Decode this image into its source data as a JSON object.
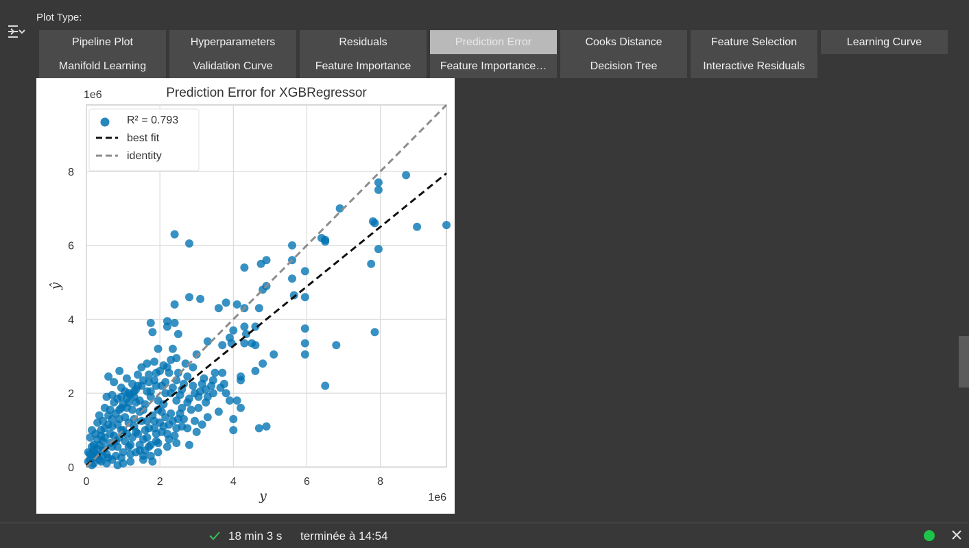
{
  "plot_type_label": "Plot Type:",
  "buttons": [
    {
      "label": "Pipeline Plot",
      "active": false
    },
    {
      "label": "Hyperparameters",
      "active": false
    },
    {
      "label": "Residuals",
      "active": false
    },
    {
      "label": "Prediction Error",
      "active": true
    },
    {
      "label": "Cooks Distance",
      "active": false
    },
    {
      "label": "Feature Selection",
      "active": false
    },
    {
      "label": "Learning Curve",
      "active": false
    },
    {
      "label": "Manifold Learning",
      "active": false
    },
    {
      "label": "Validation Curve",
      "active": false
    },
    {
      "label": "Feature Importance",
      "active": false
    },
    {
      "label": "Feature Importance…",
      "active": false
    },
    {
      "label": "Decision Tree",
      "active": false
    },
    {
      "label": "Interactive Residuals",
      "active": false
    }
  ],
  "chart_data": {
    "type": "scatter",
    "title": "Prediction Error for XGBRegressor",
    "xlabel": "y",
    "ylabel": "ŷ",
    "x_offset_text": "1e6",
    "y_offset_text": "1e6",
    "xlim": [
      0,
      9.8
    ],
    "ylim": [
      0,
      9.8
    ],
    "xticks": [
      "0",
      "2",
      "4",
      "6",
      "8"
    ],
    "yticks": [
      "0",
      "2",
      "4",
      "6",
      "8"
    ],
    "grid": true,
    "legend": {
      "position": "top-left",
      "entries": [
        {
          "label": "R² = 0.793",
          "marker": "circle",
          "color": "#0072b2"
        },
        {
          "label": "best fit",
          "marker": "dashed-line",
          "color": "#111111"
        },
        {
          "label": "identity",
          "marker": "dashed-line",
          "color": "#8c8c8c"
        }
      ]
    },
    "r2": 0.793,
    "series": [
      {
        "name": "R² = 0.793",
        "kind": "scatter",
        "color": "#0072b2",
        "points": [
          [
            8.7,
            7.9
          ],
          [
            7.95,
            7.7
          ],
          [
            7.95,
            7.5
          ],
          [
            7.8,
            6.65
          ],
          [
            7.85,
            6.6
          ],
          [
            9.0,
            6.5
          ],
          [
            9.8,
            6.55
          ],
          [
            7.95,
            5.9
          ],
          [
            7.75,
            5.5
          ],
          [
            7.85,
            3.65
          ],
          [
            6.9,
            7.0
          ],
          [
            6.4,
            6.2
          ],
          [
            6.5,
            6.1
          ],
          [
            6.5,
            6.15
          ],
          [
            5.6,
            6.0
          ],
          [
            5.95,
            5.3
          ],
          [
            5.6,
            5.6
          ],
          [
            5.6,
            5.1
          ],
          [
            5.95,
            4.6
          ],
          [
            5.65,
            4.65
          ],
          [
            5.95,
            3.75
          ],
          [
            5.95,
            3.35
          ],
          [
            5.95,
            3.05
          ],
          [
            6.8,
            3.3
          ],
          [
            6.5,
            2.2
          ],
          [
            5.1,
            3.05
          ],
          [
            4.8,
            2.8
          ],
          [
            4.6,
            2.6
          ],
          [
            4.9,
            1.1
          ],
          [
            4.7,
            1.05
          ],
          [
            2.4,
            6.3
          ],
          [
            2.8,
            6.05
          ],
          [
            4.3,
            5.4
          ],
          [
            4.75,
            5.5
          ],
          [
            4.9,
            5.6
          ],
          [
            4.9,
            4.9
          ],
          [
            4.8,
            4.8
          ],
          [
            4.3,
            4.3
          ],
          [
            4.7,
            4.3
          ],
          [
            4.1,
            4.4
          ],
          [
            3.8,
            4.45
          ],
          [
            3.6,
            4.3
          ],
          [
            4.6,
            3.8
          ],
          [
            4.35,
            3.6
          ],
          [
            4.0,
            3.7
          ],
          [
            4.5,
            3.35
          ],
          [
            4.3,
            3.35
          ],
          [
            4.6,
            3.3
          ],
          [
            4.3,
            3.8
          ],
          [
            3.9,
            3.5
          ],
          [
            2.4,
            4.4
          ],
          [
            2.8,
            4.6
          ],
          [
            3.1,
            4.55
          ],
          [
            2.2,
            3.95
          ],
          [
            2.2,
            3.8
          ],
          [
            2.4,
            3.9
          ],
          [
            2.35,
            3.2
          ],
          [
            1.95,
            3.2
          ],
          [
            1.75,
            3.9
          ],
          [
            1.8,
            3.65
          ],
          [
            2.5,
            3.6
          ],
          [
            3.3,
            3.4
          ],
          [
            3.0,
            3.05
          ],
          [
            2.7,
            2.8
          ],
          [
            2.45,
            2.95
          ],
          [
            3.7,
            3.3
          ],
          [
            3.95,
            3.35
          ],
          [
            3.75,
            2.25
          ],
          [
            4.2,
            2.35
          ],
          [
            4.2,
            2.45
          ],
          [
            4.1,
            1.8
          ],
          [
            3.9,
            1.8
          ],
          [
            4.2,
            1.6
          ],
          [
            4.0,
            1.3
          ],
          [
            3.6,
            1.5
          ],
          [
            4.0,
            1.0
          ],
          [
            3.3,
            1.35
          ],
          [
            2.6,
            1.1
          ],
          [
            3.0,
            0.95
          ],
          [
            2.4,
            0.85
          ],
          [
            2.2,
            0.55
          ],
          [
            1.8,
            0.15
          ],
          [
            1.55,
            0.3
          ],
          [
            2.8,
            0.6
          ],
          [
            3.3,
            1.9
          ],
          [
            3.4,
            2.2
          ],
          [
            3.8,
            2.0
          ],
          [
            3.2,
            2.4
          ],
          [
            3.5,
            2.55
          ],
          [
            3.7,
            2.55
          ],
          [
            2.9,
            2.2
          ],
          [
            3.1,
            2.05
          ],
          [
            2.8,
            1.85
          ],
          [
            2.6,
            1.6
          ],
          [
            2.5,
            1.3
          ],
          [
            2.3,
            1.45
          ],
          [
            2.1,
            1.7
          ],
          [
            2.0,
            1.2
          ],
          [
            1.8,
            1.4
          ],
          [
            1.6,
            1.0
          ],
          [
            1.4,
            0.9
          ],
          [
            1.2,
            0.6
          ],
          [
            1.0,
            0.4
          ],
          [
            0.8,
            0.3
          ],
          [
            0.6,
            0.25
          ],
          [
            0.4,
            0.15
          ],
          [
            0.2,
            0.1
          ],
          [
            0.1,
            0.2
          ],
          [
            0.3,
            0.5
          ],
          [
            0.5,
            0.8
          ],
          [
            0.7,
            1.1
          ],
          [
            0.9,
            1.3
          ],
          [
            1.1,
            1.6
          ],
          [
            1.3,
            1.9
          ],
          [
            1.5,
            2.2
          ],
          [
            1.7,
            2.5
          ],
          [
            0.6,
            2.45
          ],
          [
            0.9,
            2.6
          ],
          [
            1.1,
            2.4
          ],
          [
            1.4,
            2.5
          ],
          [
            1.65,
            2.8
          ],
          [
            1.85,
            2.85
          ],
          [
            2.0,
            2.6
          ],
          [
            2.15,
            2.3
          ],
          [
            2.3,
            2.0
          ],
          [
            2.45,
            1.8
          ],
          [
            2.6,
            2.1
          ],
          [
            2.75,
            2.45
          ],
          [
            2.9,
            2.7
          ],
          [
            2.2,
            2.7
          ],
          [
            1.9,
            2.2
          ],
          [
            1.6,
            1.7
          ],
          [
            1.3,
            1.3
          ],
          [
            1.0,
            1.0
          ],
          [
            0.8,
            0.7
          ],
          [
            0.5,
            0.5
          ],
          [
            0.3,
            0.3
          ],
          [
            0.15,
            0.05
          ],
          [
            0.05,
            0.4
          ],
          [
            0.25,
            0.9
          ],
          [
            0.45,
            1.25
          ],
          [
            0.65,
            1.55
          ],
          [
            0.85,
            1.85
          ],
          [
            1.05,
            2.05
          ],
          [
            1.25,
            2.25
          ],
          [
            1.45,
            1.5
          ],
          [
            1.65,
            1.25
          ],
          [
            1.85,
            1.05
          ],
          [
            2.05,
            0.95
          ],
          [
            2.25,
            0.75
          ],
          [
            2.45,
            0.65
          ],
          [
            1.2,
            0.15
          ],
          [
            1.0,
            0.1
          ],
          [
            0.85,
            0.05
          ],
          [
            1.6,
            0.45
          ],
          [
            1.9,
            0.7
          ],
          [
            2.1,
            1.1
          ],
          [
            2.35,
            1.25
          ],
          [
            2.55,
            1.45
          ],
          [
            2.75,
            1.05
          ],
          [
            3.05,
            1.6
          ],
          [
            3.25,
            1.75
          ],
          [
            3.45,
            2.0
          ],
          [
            3.65,
            2.15
          ],
          [
            2.95,
            1.25
          ],
          [
            3.15,
            1.15
          ],
          [
            0.2,
            0.6
          ],
          [
            0.4,
            1.0
          ],
          [
            0.6,
            1.4
          ],
          [
            0.75,
            1.75
          ],
          [
            0.95,
            2.15
          ],
          [
            1.15,
            2.0
          ],
          [
            1.35,
            1.75
          ],
          [
            1.55,
            1.55
          ],
          [
            1.75,
            1.9
          ],
          [
            1.95,
            1.55
          ],
          [
            2.15,
            1.35
          ],
          [
            0.35,
            0.2
          ],
          [
            0.55,
            0.1
          ],
          [
            0.7,
            0.55
          ],
          [
            0.9,
            0.8
          ],
          [
            1.1,
            0.9
          ],
          [
            1.3,
            1.1
          ],
          [
            1.5,
            1.25
          ],
          [
            1.7,
            1.05
          ],
          [
            1.9,
            0.9
          ],
          [
            0.45,
            0.7
          ],
          [
            0.65,
            0.9
          ],
          [
            0.85,
            1.15
          ],
          [
            1.05,
            1.35
          ],
          [
            1.25,
            1.55
          ],
          [
            1.45,
            1.8
          ],
          [
            1.65,
            2.05
          ],
          [
            1.85,
            2.35
          ],
          [
            2.05,
            2.2
          ],
          [
            2.25,
            2.55
          ],
          [
            2.45,
            2.35
          ],
          [
            2.65,
            2.25
          ],
          [
            0.1,
            0.8
          ],
          [
            0.3,
            1.2
          ],
          [
            0.5,
            1.6
          ],
          [
            0.7,
            1.95
          ],
          [
            0.95,
            1.6
          ],
          [
            1.15,
            1.2
          ],
          [
            1.35,
            0.95
          ],
          [
            1.55,
            0.75
          ],
          [
            1.75,
            0.6
          ],
          [
            1.95,
            0.4
          ],
          [
            0.25,
            0.35
          ],
          [
            0.45,
            0.45
          ],
          [
            0.65,
            0.65
          ],
          [
            0.85,
            0.55
          ],
          [
            1.05,
            0.7
          ],
          [
            1.25,
            0.8
          ],
          [
            1.45,
            0.6
          ],
          [
            1.65,
            0.8
          ],
          [
            1.85,
            1.25
          ],
          [
            2.05,
            1.5
          ],
          [
            2.25,
            1.15
          ],
          [
            2.45,
            1.05
          ],
          [
            2.65,
            1.3
          ],
          [
            2.85,
            1.55
          ],
          [
            3.05,
            1.9
          ],
          [
            3.25,
            2.1
          ],
          [
            3.45,
            2.35
          ],
          [
            0.15,
            1.0
          ],
          [
            0.35,
            1.4
          ],
          [
            0.55,
            1.9
          ],
          [
            0.75,
            2.3
          ],
          [
            0.95,
            1.0
          ],
          [
            1.15,
            0.55
          ],
          [
            1.35,
            0.4
          ],
          [
            1.55,
            0.2
          ],
          [
            1.75,
            0.3
          ],
          [
            0.05,
            0.15
          ],
          [
            0.1,
            0.35
          ],
          [
            0.2,
            0.25
          ],
          [
            0.35,
            0.6
          ],
          [
            0.55,
            0.35
          ],
          [
            0.75,
            0.85
          ],
          [
            0.95,
            1.9
          ],
          [
            1.15,
            1.75
          ],
          [
            1.35,
            2.1
          ],
          [
            1.55,
            2.35
          ],
          [
            1.75,
            2.05
          ],
          [
            1.95,
            1.8
          ],
          [
            2.15,
            2.0
          ],
          [
            2.35,
            2.15
          ],
          [
            2.55,
            1.95
          ],
          [
            2.75,
            1.75
          ],
          [
            2.95,
            2.0
          ],
          [
            3.15,
            2.25
          ],
          [
            0.3,
            0.75
          ],
          [
            0.5,
            1.05
          ],
          [
            0.7,
            1.3
          ],
          [
            0.9,
            1.55
          ],
          [
            1.1,
            1.85
          ],
          [
            1.3,
            2.05
          ],
          [
            1.5,
            2.7
          ],
          [
            1.7,
            2.3
          ],
          [
            1.9,
            2.55
          ],
          [
            2.1,
            2.75
          ],
          [
            2.3,
            2.9
          ],
          [
            2.5,
            2.55
          ],
          [
            0.15,
            0.55
          ],
          [
            0.4,
            0.85
          ],
          [
            0.6,
            1.15
          ],
          [
            0.8,
            1.45
          ],
          [
            1.0,
            1.7
          ],
          [
            1.2,
            1.95
          ],
          [
            1.4,
            2.2
          ],
          [
            0.2,
            0.45
          ],
          [
            0.45,
            0.3
          ],
          [
            0.7,
            0.2
          ],
          [
            0.95,
            0.25
          ],
          [
            1.2,
            0.35
          ],
          [
            1.45,
            0.45
          ],
          [
            1.7,
            0.55
          ],
          [
            1.95,
            0.65
          ],
          [
            2.2,
            0.9
          ]
        ]
      },
      {
        "name": "best fit",
        "kind": "line",
        "color": "#111111",
        "points": [
          [
            0,
            0.05
          ],
          [
            9.8,
            7.95
          ]
        ]
      },
      {
        "name": "identity",
        "kind": "line",
        "color": "#8c8c8c",
        "points": [
          [
            0,
            0
          ],
          [
            9.8,
            9.8
          ]
        ]
      }
    ]
  },
  "statusbar": {
    "elapsed": "18 min 3 s",
    "finished": "terminée à 14:54"
  },
  "icons": {
    "toggle": "output-toggle-icon",
    "check": "check-icon",
    "status": "status-dot",
    "close": "close-icon"
  }
}
